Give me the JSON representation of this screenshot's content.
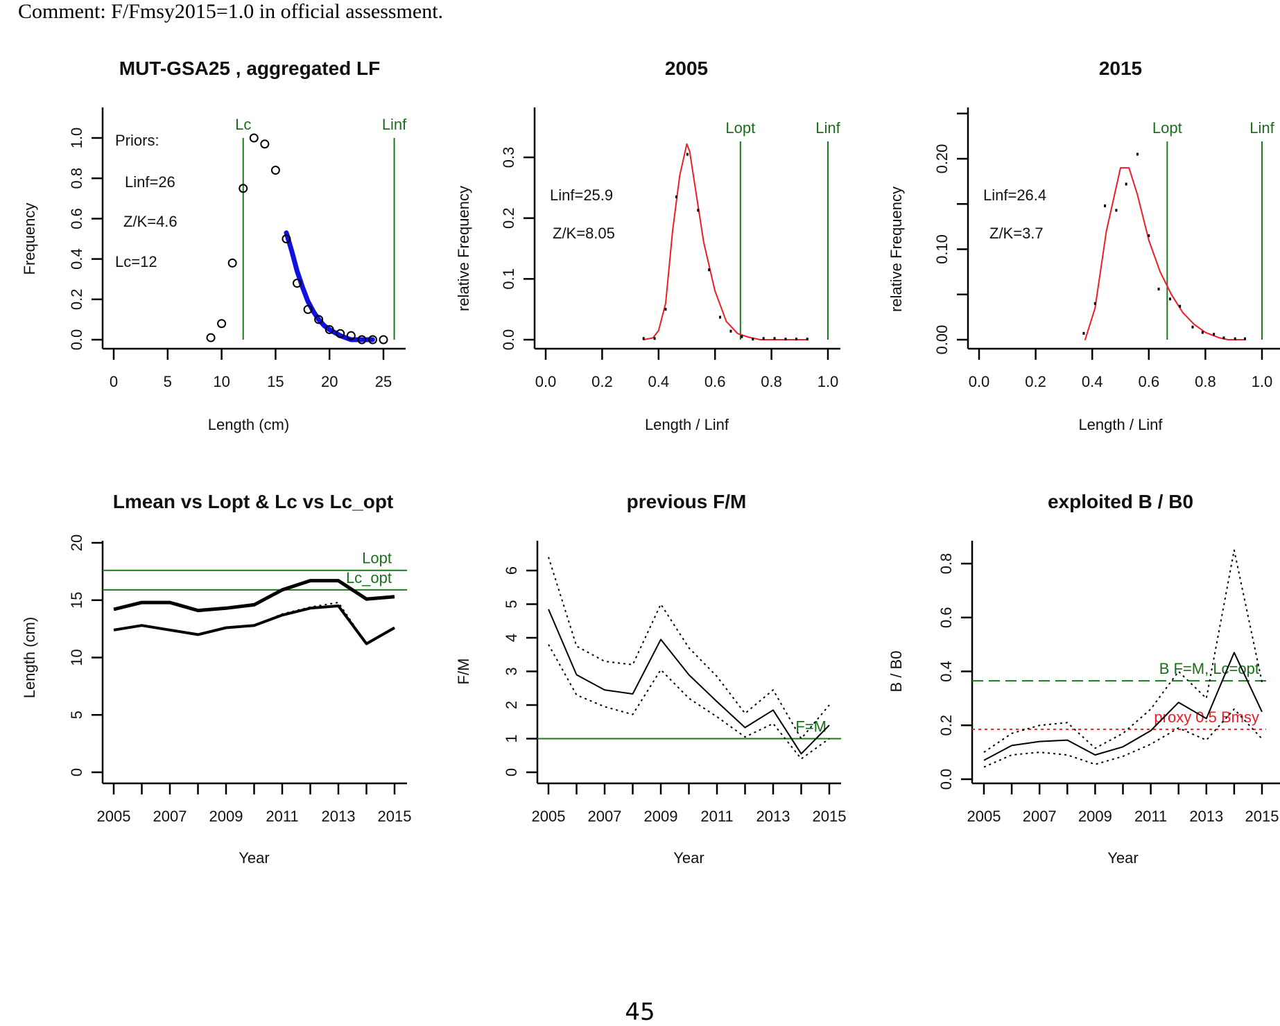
{
  "comment": "Comment: F/Fmsy2015=1.0 in official assessment.",
  "page_number": "45",
  "colors": {
    "green": "#1a7a1a",
    "red": "#ee1c24",
    "blue": "#1010e0",
    "black": "#000000"
  },
  "chart_data": [
    {
      "id": "aggregated-lf",
      "type": "scatter",
      "title": "MUT-GSA25 , aggregated LF",
      "xlabel": "Length (cm)",
      "ylabel": "Frequency",
      "xlim": [
        0,
        26.5
      ],
      "ylim": [
        0,
        1.15
      ],
      "xticks": [
        0,
        5,
        10,
        15,
        20,
        25
      ],
      "yticks": [
        0.0,
        0.2,
        0.4,
        0.6,
        0.8,
        1.0
      ],
      "xtick_labels": [
        "0",
        "5",
        "10",
        "15",
        "20",
        "25"
      ],
      "ytick_labels": [
        "0.0",
        "0.2",
        "0.4",
        "0.6",
        "0.8",
        "1.0"
      ],
      "points": {
        "x": [
          9,
          10,
          11,
          12,
          13,
          14,
          15,
          16,
          17,
          18,
          19,
          20,
          21,
          22,
          23,
          24,
          25
        ],
        "y": [
          0.01,
          0.08,
          0.38,
          0.75,
          1.0,
          0.97,
          0.84,
          0.5,
          0.28,
          0.15,
          0.1,
          0.05,
          0.03,
          0.02,
          0.0,
          0.0,
          0.0
        ]
      },
      "fit_curve": {
        "name": "fit",
        "color": "blue",
        "x": [
          16,
          16.5,
          17,
          17.5,
          18,
          18.5,
          19,
          19.5,
          20,
          20.5,
          21,
          21.5,
          22,
          23,
          24
        ],
        "y": [
          0.53,
          0.44,
          0.34,
          0.26,
          0.19,
          0.14,
          0.1,
          0.07,
          0.05,
          0.035,
          0.02,
          0.01,
          0.0,
          0.0,
          0.0
        ]
      },
      "vlines": [
        {
          "label": "Lc",
          "x": 12
        },
        {
          "label": "Linf",
          "x": 26
        }
      ],
      "annotations": [
        "Priors:",
        "Linf=26",
        "Z/K=4.6",
        "Lc=12"
      ]
    },
    {
      "id": "lf-2005",
      "type": "line",
      "title": "2005",
      "xlabel": "Length / Linf",
      "ylabel": "relative Frequency",
      "xlim": [
        0,
        1.0
      ],
      "ylim": [
        0,
        0.37
      ],
      "xticks": [
        0.0,
        0.2,
        0.4,
        0.6,
        0.8,
        1.0
      ],
      "yticks": [
        0.0,
        0.1,
        0.2,
        0.3
      ],
      "xtick_labels": [
        "0.0",
        "0.2",
        "0.4",
        "0.6",
        "0.8",
        "1.0"
      ],
      "ytick_labels": [
        "0.0",
        "0.1",
        "0.2",
        "0.3"
      ],
      "points": {
        "x": [
          0.347,
          0.386,
          0.425,
          0.463,
          0.502,
          0.54,
          0.579,
          0.618,
          0.656,
          0.695,
          0.734,
          0.772,
          0.811,
          0.85,
          0.888,
          0.927
        ],
        "y": [
          0.002,
          0.002,
          0.05,
          0.235,
          0.305,
          0.213,
          0.115,
          0.037,
          0.014,
          0.005,
          0.001,
          0.002,
          0.002,
          0.001,
          0.001,
          0.001
        ]
      },
      "fit_curve": {
        "name": "fit",
        "color": "red",
        "x": [
          0.347,
          0.38,
          0.4,
          0.425,
          0.45,
          0.475,
          0.5,
          0.51,
          0.53,
          0.56,
          0.6,
          0.64,
          0.68,
          0.72,
          0.76,
          0.8,
          0.85,
          0.927
        ],
        "y": [
          0.0,
          0.003,
          0.015,
          0.06,
          0.18,
          0.27,
          0.322,
          0.31,
          0.25,
          0.16,
          0.08,
          0.03,
          0.01,
          0.004,
          0.0,
          0.0,
          0.0,
          0.0
        ]
      },
      "vlines": [
        {
          "label": "Lopt",
          "x": 0.69
        },
        {
          "label": "Linf",
          "x": 1.0
        }
      ],
      "annotations": [
        "Linf=25.9",
        "Z/K=8.05"
      ]
    },
    {
      "id": "lf-2015",
      "type": "line",
      "title": "2015",
      "xlabel": "Length / Linf",
      "ylabel": "relative Frequency",
      "xlim": [
        0,
        1.0
      ],
      "ylim": [
        0,
        0.25
      ],
      "xticks": [
        0.0,
        0.2,
        0.4,
        0.6,
        0.8,
        1.0
      ],
      "yticks": [
        0.0,
        0.05,
        0.1,
        0.15,
        0.2,
        0.25
      ],
      "xtick_labels": [
        "0.0",
        "0.2",
        "0.4",
        "0.6",
        "0.8",
        "1.0"
      ],
      "ytick_labels": [
        "0.00",
        "",
        "0.10",
        "",
        "0.20",
        ""
      ],
      "points": {
        "x": [
          0.37,
          0.41,
          0.445,
          0.485,
          0.52,
          0.56,
          0.6,
          0.635,
          0.675,
          0.71,
          0.755,
          0.79,
          0.83,
          0.865,
          0.905,
          0.94
        ],
        "y": [
          0.007,
          0.04,
          0.148,
          0.143,
          0.172,
          0.205,
          0.115,
          0.056,
          0.045,
          0.037,
          0.014,
          0.008,
          0.006,
          0.002,
          0.001,
          0.001
        ]
      },
      "fit_curve": {
        "name": "fit",
        "color": "red",
        "x": [
          0.375,
          0.41,
          0.45,
          0.5,
          0.53,
          0.56,
          0.6,
          0.64,
          0.68,
          0.72,
          0.76,
          0.8,
          0.85,
          0.88,
          0.94
        ],
        "y": [
          0.0,
          0.035,
          0.12,
          0.19,
          0.19,
          0.16,
          0.11,
          0.075,
          0.05,
          0.03,
          0.017,
          0.008,
          0.002,
          0.0,
          0.0
        ]
      },
      "vlines": [
        {
          "label": "Lopt",
          "x": 0.665
        },
        {
          "label": "Linf",
          "x": 1.0
        }
      ],
      "annotations": [
        "Linf=26.4",
        "Z/K=3.7"
      ]
    },
    {
      "id": "lmean-vs-lopt",
      "type": "line",
      "title": "Lmean vs Lopt & Lc vs Lc_opt",
      "xlabel": "Year",
      "ylabel": "Length (cm)",
      "xlim": [
        2004.6,
        2015.6
      ],
      "ylim": [
        -1,
        21
      ],
      "xticks": [
        2005,
        2006,
        2007,
        2008,
        2009,
        2010,
        2011,
        2012,
        2013,
        2014,
        2015
      ],
      "xtick_labels": [
        "2005",
        "",
        "2007",
        "",
        "2009",
        "",
        "2011",
        "",
        "2013",
        "",
        "2015"
      ],
      "yticks": [
        0,
        5,
        10,
        15,
        20
      ],
      "ytick_labels": [
        "0",
        "5",
        "10",
        "15",
        "20"
      ],
      "x": [
        2005,
        2006,
        2007,
        2008,
        2009,
        2010,
        2011,
        2012,
        2013,
        2014,
        2015
      ],
      "series": [
        {
          "name": "Lmean",
          "style": "thick",
          "values": [
            14.2,
            14.8,
            14.8,
            14.1,
            14.3,
            14.6,
            15.9,
            16.7,
            16.7,
            15.1,
            15.3
          ]
        },
        {
          "name": "Lc",
          "style": "dotted-thick",
          "values": [
            12.4,
            12.8,
            12.4,
            12.0,
            12.6,
            12.8,
            13.7,
            14.3,
            14.5,
            11.2,
            12.6
          ]
        },
        {
          "name": "Lc-upper",
          "style": "dotted",
          "values": [
            12.4,
            12.8,
            12.4,
            12.0,
            12.6,
            12.8,
            13.8,
            14.4,
            14.8,
            11.2,
            12.6
          ]
        }
      ],
      "hlines": [
        {
          "label": "Lopt",
          "y": 17.6
        },
        {
          "label": "Lc_opt",
          "y": 15.9
        }
      ]
    },
    {
      "id": "previous-fm",
      "type": "line",
      "title": "previous F/M",
      "xlabel": "Year",
      "ylabel": "F/M",
      "xlim": [
        2004.6,
        2015.6
      ],
      "ylim": [
        -0.3,
        6.7
      ],
      "xticks": [
        2005,
        2006,
        2007,
        2008,
        2009,
        2010,
        2011,
        2012,
        2013,
        2014,
        2015
      ],
      "xtick_labels": [
        "2005",
        "",
        "2007",
        "",
        "2009",
        "",
        "2011",
        "",
        "2013",
        "",
        "2015"
      ],
      "yticks": [
        0,
        1,
        2,
        3,
        4,
        5,
        6
      ],
      "ytick_labels": [
        "0",
        "1",
        "2",
        "3",
        "4",
        "5",
        "6"
      ],
      "x": [
        2005,
        2006,
        2007,
        2008,
        2009,
        2010,
        2011,
        2012,
        2013,
        2014,
        2015
      ],
      "series": [
        {
          "name": "F/M",
          "style": "solid",
          "values": [
            4.85,
            2.9,
            2.45,
            2.33,
            3.95,
            2.9,
            2.1,
            1.33,
            1.85,
            0.55,
            1.4
          ]
        },
        {
          "name": "upper",
          "style": "dotted",
          "values": [
            6.4,
            3.75,
            3.3,
            3.2,
            5.0,
            3.7,
            2.85,
            1.75,
            2.45,
            1.0,
            2.0
          ]
        },
        {
          "name": "lower",
          "style": "dotted",
          "values": [
            3.8,
            2.3,
            1.95,
            1.72,
            3.05,
            2.2,
            1.65,
            1.05,
            1.45,
            0.4,
            1.0
          ]
        }
      ],
      "hlines": [
        {
          "label": "F=M",
          "y": 1.0
        }
      ]
    },
    {
      "id": "exploited-b-b0",
      "type": "line",
      "title": "exploited B / B0",
      "xlabel": "Year",
      "ylabel": "B / B0",
      "xlim": [
        2004.6,
        2015.6
      ],
      "ylim": [
        -0.03,
        0.88
      ],
      "xticks": [
        2005,
        2006,
        2007,
        2008,
        2009,
        2010,
        2011,
        2012,
        2013,
        2014,
        2015
      ],
      "xtick_labels": [
        "2005",
        "",
        "2007",
        "",
        "2009",
        "",
        "2011",
        "",
        "2013",
        "",
        "2015"
      ],
      "yticks": [
        0.0,
        0.2,
        0.4,
        0.6,
        0.8
      ],
      "ytick_labels": [
        "0.0",
        "0.2",
        "0.4",
        "0.6",
        "0.8"
      ],
      "x": [
        2005,
        2006,
        2007,
        2008,
        2009,
        2010,
        2011,
        2012,
        2013,
        2014,
        2015
      ],
      "series": [
        {
          "name": "B/B0",
          "style": "solid",
          "values": [
            0.07,
            0.125,
            0.14,
            0.145,
            0.09,
            0.12,
            0.18,
            0.285,
            0.225,
            0.47,
            0.25
          ]
        },
        {
          "name": "upper",
          "style": "dotted",
          "values": [
            0.1,
            0.17,
            0.2,
            0.21,
            0.115,
            0.17,
            0.26,
            0.4,
            0.3,
            0.85,
            0.36
          ]
        },
        {
          "name": "lower",
          "style": "dotted",
          "values": [
            0.045,
            0.09,
            0.1,
            0.09,
            0.055,
            0.085,
            0.13,
            0.19,
            0.145,
            0.26,
            0.15
          ]
        }
      ],
      "hlines": [
        {
          "label": "B F=M, Lc=opt",
          "y": 0.365,
          "color": "green",
          "style": "dashed"
        },
        {
          "label": "proxy 0.5 Bmsy",
          "y": 0.185,
          "color": "red",
          "style": "dotted"
        }
      ]
    }
  ]
}
